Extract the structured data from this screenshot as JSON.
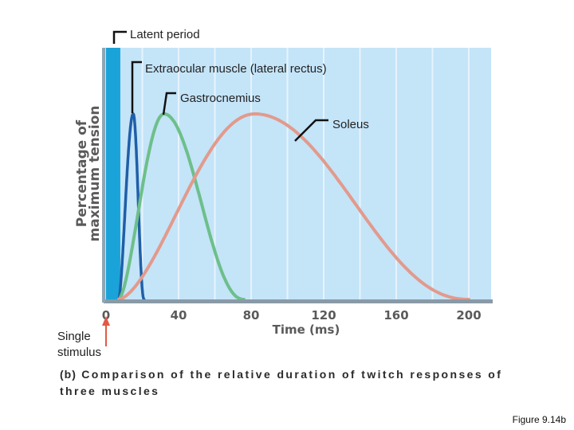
{
  "chart_data": {
    "type": "line",
    "xlabel": "Time (ms)",
    "ylabel_lines": [
      "Percentage of",
      "maximum tension"
    ],
    "x_ticks": [
      "0",
      "40",
      "80",
      "120",
      "160",
      "200"
    ],
    "xlim": [
      0,
      210
    ],
    "ylim": [
      0,
      100
    ],
    "latent_period": {
      "label": "Latent period",
      "start": 0,
      "end": 7
    },
    "series": [
      {
        "name": "Extraocular muscle (lateral rectus)",
        "color": "#1f5fa8",
        "start": 7,
        "peak_x": 15,
        "end": 21,
        "peak": 100
      },
      {
        "name": "Gastrocnemius",
        "color": "#6dbf8a",
        "start": 7,
        "peak_x": 32,
        "end": 76,
        "peak": 100
      },
      {
        "name": "Soleus",
        "color": "#e29a8c",
        "start": 7,
        "peak_x": 82,
        "end": 200,
        "peak": 100
      }
    ],
    "annotations": {
      "stimulus": [
        "Single",
        "stimulus"
      ]
    }
  },
  "caption": {
    "part": "(b)",
    "text": "Comparison of the relative duration of twitch responses of three muscles"
  },
  "figure_label": "Figure 9.14b",
  "colors": {
    "plot_bg": "#c4e4f8",
    "grid": "#e6f3fc",
    "latent": "#1aa3d8",
    "axis": "#8a9aa6",
    "stim_arrow": "#e15a45"
  }
}
